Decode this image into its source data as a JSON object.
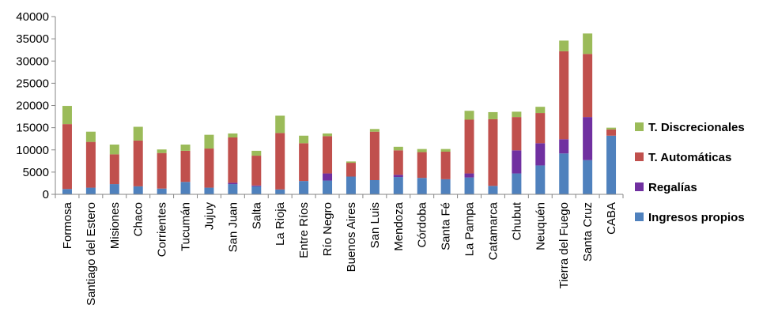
{
  "chart_data": {
    "type": "bar",
    "stacked": true,
    "categories": [
      "Formosa",
      "Santiago del Estero",
      "Misiones",
      "Chaco",
      "Corrientes",
      "Tucumán",
      "Jujuy",
      "San Juan",
      "Salta",
      "La Rioja",
      "Entre Ríos",
      "Río Negro",
      "Buenos Aires",
      "San Luis",
      "Mendoza",
      "Córdoba",
      "Santa Fé",
      "La Pampa",
      "Catamarca",
      "Chubut",
      "Neuquén",
      "Tierra del Fuego",
      "Santa Cruz",
      "CABA"
    ],
    "series": [
      {
        "name": "Ingresos propios",
        "color": "#4f81bd",
        "values": [
          1200,
          1500,
          2300,
          1800,
          1300,
          2800,
          1500,
          2300,
          1800,
          1100,
          3000,
          3100,
          4000,
          3200,
          3900,
          3700,
          3400,
          3800,
          1900,
          4700,
          6500,
          9200,
          7700,
          13200
        ]
      },
      {
        "name": "Regalías",
        "color": "#7030a0",
        "values": [
          0,
          0,
          0,
          0,
          0,
          0,
          0,
          300,
          200,
          0,
          0,
          1600,
          0,
          0,
          500,
          0,
          0,
          900,
          0,
          5200,
          5000,
          3200,
          9700,
          0
        ]
      },
      {
        "name": "T. Automáticas",
        "color": "#c0504d",
        "values": [
          14600,
          10300,
          6700,
          10300,
          8000,
          7000,
          8800,
          10200,
          6700,
          12700,
          8500,
          8400,
          3100,
          10900,
          5500,
          5800,
          6200,
          12100,
          15000,
          7500,
          6800,
          19800,
          14200,
          1400
        ]
      },
      {
        "name": "T. Discrecionales",
        "color": "#9bbb59",
        "values": [
          4100,
          2300,
          2200,
          3100,
          800,
          1400,
          3100,
          900,
          1100,
          3900,
          1700,
          600,
          300,
          600,
          800,
          700,
          600,
          2000,
          1600,
          1200,
          1400,
          2400,
          4600,
          400
        ]
      }
    ],
    "legend_order": [
      "T. Discrecionales",
      "T. Automáticas",
      "Regalías",
      "Ingresos propios"
    ],
    "legend_position": "right",
    "ylim": [
      0,
      40000
    ],
    "yticks": [
      "0",
      "5000",
      "10000",
      "15000",
      "20000",
      "25000",
      "30000",
      "35000",
      "40000"
    ],
    "grid": false
  }
}
